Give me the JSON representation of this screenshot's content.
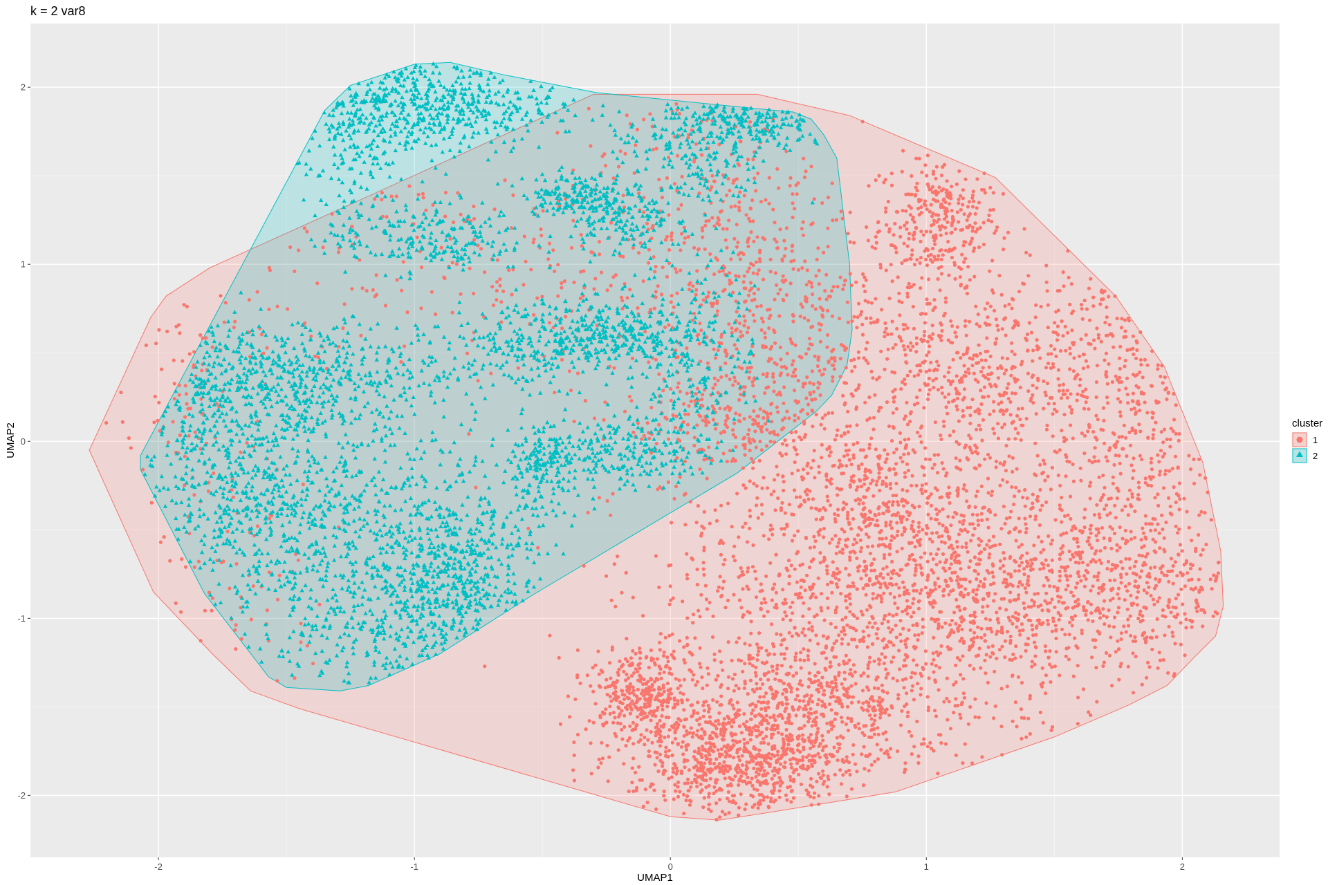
{
  "chart_data": {
    "type": "scatter",
    "title": "k = 2 var8",
    "xlabel": "UMAP1",
    "ylabel": "UMAP2",
    "xlim": [
      -2.5,
      2.38
    ],
    "ylim": [
      -2.35,
      2.36
    ],
    "x_ticks": [
      -2,
      -1,
      0,
      1,
      2
    ],
    "x_tick_labels": [
      "-2",
      "-1",
      "0",
      "1",
      "2"
    ],
    "y_ticks": [
      -2,
      -1,
      0,
      1,
      2
    ],
    "y_tick_labels": [
      "-2",
      "-1",
      "0",
      "1",
      "2"
    ],
    "grid": true,
    "panel_background": "#ebebeb",
    "legend": {
      "title": "cluster",
      "position": "right",
      "entries": [
        {
          "label": "1",
          "shape": "circle",
          "color": "#F8766D"
        },
        {
          "label": "2",
          "shape": "triangle",
          "color": "#00BFC4"
        }
      ]
    },
    "series": [
      {
        "name": "1",
        "shape": "circle",
        "color": "#F8766D",
        "fill_opacity": 0.2,
        "hull": [
          [
            -2.27,
            -0.05
          ],
          [
            -2.03,
            0.7
          ],
          [
            -1.97,
            0.82
          ],
          [
            -1.8,
            0.98
          ],
          [
            -1.6,
            1.11
          ],
          [
            -0.3,
            1.96
          ],
          [
            0.34,
            1.96
          ],
          [
            0.7,
            1.84
          ],
          [
            1.27,
            1.49
          ],
          [
            1.74,
            0.82
          ],
          [
            1.93,
            0.42
          ],
          [
            2.08,
            -0.12
          ],
          [
            2.15,
            -0.62
          ],
          [
            2.16,
            -0.93
          ],
          [
            2.13,
            -1.1
          ],
          [
            2.04,
            -1.23
          ],
          [
            1.94,
            -1.38
          ],
          [
            1.79,
            -1.49
          ],
          [
            1.5,
            -1.67
          ],
          [
            0.88,
            -1.98
          ],
          [
            0.37,
            -2.1
          ],
          [
            0.19,
            -2.14
          ],
          [
            0,
            -2.12
          ],
          [
            -1.45,
            -1.51
          ],
          [
            -1.64,
            -1.41
          ],
          [
            -1.79,
            -1.2
          ],
          [
            -2.02,
            -0.85
          ]
        ],
        "clusters": [
          {
            "center": [
              1.05,
              1.25
            ],
            "spread": [
              0.12,
              0.18
            ],
            "n": 300
          },
          {
            "center": [
              1.2,
              0.35
            ],
            "spread": [
              0.32,
              0.3
            ],
            "n": 650
          },
          {
            "center": [
              0.85,
              -0.35
            ],
            "spread": [
              0.3,
              0.2
            ],
            "n": 400
          },
          {
            "center": [
              1.1,
              -0.85
            ],
            "spread": [
              0.55,
              0.28
            ],
            "n": 1500
          },
          {
            "center": [
              -0.12,
              -1.42
            ],
            "spread": [
              0.1,
              0.12
            ],
            "n": 300
          },
          {
            "center": [
              0.55,
              -1.45
            ],
            "spread": [
              0.22,
              0.18
            ],
            "n": 420
          },
          {
            "center": [
              0.35,
              -1.82
            ],
            "spread": [
              0.18,
              0.14
            ],
            "n": 450
          },
          {
            "center": [
              0.1,
              -1.75
            ],
            "spread": [
              0.22,
              0.2
            ],
            "n": 350
          },
          {
            "center": [
              0.3,
              0.1
            ],
            "spread": [
              0.25,
              0.2
            ],
            "n": 300
          },
          {
            "center": [
              0.45,
              0.65
            ],
            "spread": [
              0.25,
              0.35
            ],
            "n": 380
          },
          {
            "center": [
              0.15,
              1.3
            ],
            "spread": [
              0.25,
              0.35
            ],
            "n": 220
          },
          {
            "center": [
              -0.6,
              1.0
            ],
            "spread": [
              0.55,
              0.35
            ],
            "n": 260
          },
          {
            "center": [
              -1.85,
              0.3
            ],
            "spread": [
              0.15,
              0.4
            ],
            "n": 100
          },
          {
            "center": [
              -1.7,
              -0.8
            ],
            "spread": [
              0.2,
              0.35
            ],
            "n": 60
          },
          {
            "center": [
              1.85,
              -0.3
            ],
            "spread": [
              0.18,
              0.5
            ],
            "n": 350
          },
          {
            "center": [
              0.9,
              -1.55
            ],
            "spread": [
              0.4,
              0.2
            ],
            "n": 200
          },
          {
            "center": [
              1.8,
              0.6
            ],
            "spread": [
              0.15,
              0.3
            ],
            "n": 100
          }
        ]
      },
      {
        "name": "2",
        "shape": "triangle",
        "color": "#00BFC4",
        "fill_opacity": 0.2,
        "hull": [
          [
            -2.07,
            -0.08
          ],
          [
            -1.35,
            1.87
          ],
          [
            -1.25,
            2.01
          ],
          [
            -1.0,
            2.13
          ],
          [
            -0.86,
            2.14
          ],
          [
            -0.65,
            2.07
          ],
          [
            -0.29,
            1.97
          ],
          [
            0.33,
            1.88
          ],
          [
            0.48,
            1.86
          ],
          [
            0.55,
            1.82
          ],
          [
            0.6,
            1.73
          ],
          [
            0.65,
            1.6
          ],
          [
            0.7,
            1.0
          ],
          [
            0.71,
            0.63
          ],
          [
            0.69,
            0.43
          ],
          [
            0.63,
            0.26
          ],
          [
            0.57,
            0.17
          ],
          [
            0.26,
            -0.18
          ],
          [
            -0.54,
            -0.87
          ],
          [
            -0.9,
            -1.2
          ],
          [
            -1.18,
            -1.38
          ],
          [
            -1.29,
            -1.41
          ],
          [
            -1.5,
            -1.39
          ],
          [
            -1.57,
            -1.33
          ],
          [
            -1.82,
            -0.86
          ],
          [
            -2.07,
            -0.16
          ]
        ],
        "clusters": [
          {
            "center": [
              -1.0,
              1.9
            ],
            "spread": [
              0.28,
              0.14
            ],
            "n": 550
          },
          {
            "center": [
              -1.25,
              1.55
            ],
            "spread": [
              0.1,
              0.2
            ],
            "n": 90
          },
          {
            "center": [
              -0.95,
              1.15
            ],
            "spread": [
              0.2,
              0.1
            ],
            "n": 220
          },
          {
            "center": [
              -0.38,
              1.4
            ],
            "spread": [
              0.1,
              0.06
            ],
            "n": 150
          },
          {
            "center": [
              -0.2,
              1.25
            ],
            "spread": [
              0.1,
              0.1
            ],
            "n": 150
          },
          {
            "center": [
              0.3,
              1.8
            ],
            "spread": [
              0.18,
              0.08
            ],
            "n": 220
          },
          {
            "center": [
              -0.5,
              0.55
            ],
            "spread": [
              0.2,
              0.12
            ],
            "n": 280
          },
          {
            "center": [
              -0.2,
              0.6
            ],
            "spread": [
              0.12,
              0.1
            ],
            "n": 180
          },
          {
            "center": [
              -1.45,
              0.35
            ],
            "spread": [
              0.3,
              0.16
            ],
            "n": 550
          },
          {
            "center": [
              -1.75,
              -0.2
            ],
            "spread": [
              0.22,
              0.38
            ],
            "n": 450
          },
          {
            "center": [
              -1.3,
              -0.4
            ],
            "spread": [
              0.28,
              0.22
            ],
            "n": 420
          },
          {
            "center": [
              -1.1,
              -0.95
            ],
            "spread": [
              0.28,
              0.22
            ],
            "n": 450
          },
          {
            "center": [
              -0.8,
              -0.7
            ],
            "spread": [
              0.15,
              0.25
            ],
            "n": 380
          },
          {
            "center": [
              -0.5,
              -0.15
            ],
            "spread": [
              0.08,
              0.12
            ],
            "n": 140
          },
          {
            "center": [
              -0.2,
              -0.05
            ],
            "spread": [
              0.18,
              0.1
            ],
            "n": 250
          },
          {
            "center": [
              0.1,
              0.55
            ],
            "spread": [
              0.12,
              0.25
            ],
            "n": 200
          },
          {
            "center": [
              0.1,
              1.55
            ],
            "spread": [
              0.15,
              0.15
            ],
            "n": 150
          }
        ]
      }
    ]
  }
}
